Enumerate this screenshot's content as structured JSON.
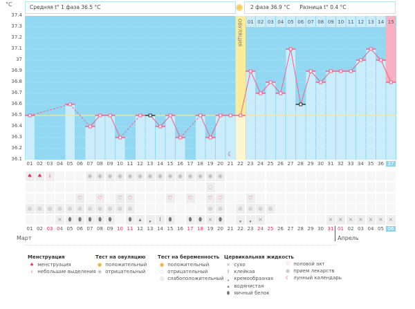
{
  "unit": "°C",
  "phase1_label": "Средняя t° 1 фаза 36.5 °C",
  "phase2_label": "2 фаза 36.9 °C",
  "diff_label": "Разница t° 0.4 °C",
  "ovulation_label": "ОВУЛЯЦИЯ",
  "colors": {
    "chart_bg": "#92d8f2",
    "bar": "#cbedfb",
    "line": "#f0608a",
    "ovulation": "#fbec9c",
    "pink": "#f9b0c0",
    "today": "#8fd4ee"
  },
  "chart_data": {
    "type": "line",
    "ylabel": "°C",
    "ylim": [
      36.1,
      37.4
    ],
    "yticks": [
      "37.4",
      "37.3",
      "37.2",
      "37.1",
      "37",
      "36.9",
      "36.8",
      "36.7",
      "36.6",
      "36.5",
      "36.4",
      "36.3",
      "36.2",
      "36.1"
    ],
    "days": [
      "01",
      "02",
      "03",
      "04",
      "05",
      "06",
      "07",
      "08",
      "09",
      "10",
      "11",
      "12",
      "13",
      "14",
      "15",
      "16",
      "17",
      "18",
      "19",
      "20",
      "21",
      "22",
      "23",
      "24",
      "25",
      "26",
      "27",
      "28",
      "29",
      "30",
      "31",
      "32",
      "33",
      "34",
      "35",
      "36",
      "37"
    ],
    "temps": [
      36.5,
      null,
      null,
      null,
      36.6,
      null,
      36.4,
      36.5,
      36.5,
      36.3,
      null,
      36.5,
      36.5,
      36.4,
      36.5,
      36.3,
      null,
      36.5,
      36.3,
      36.5,
      36.5,
      36.5,
      36.9,
      36.7,
      36.8,
      36.7,
      37.1,
      36.6,
      36.9,
      36.8,
      36.9,
      36.9,
      36.9,
      37.0,
      37.1,
      37.0,
      36.8
    ],
    "coverline": 36.5,
    "ovulation_day": 22
  },
  "phase2_days": [
    "01",
    "02",
    "03",
    "04",
    "05",
    "06",
    "07",
    "08",
    "09",
    "10",
    "11",
    "12",
    "13",
    "14",
    "15"
  ],
  "dates": [
    "01",
    "02",
    "03",
    "04",
    "05",
    "06",
    "07",
    "08",
    "09",
    "10",
    "11",
    "12",
    "13",
    "14",
    "15",
    "16",
    "17",
    "18",
    "19",
    "20",
    "21",
    "22",
    "23",
    "24",
    "25",
    "26",
    "27",
    "28",
    "29",
    "30",
    "31",
    "01",
    "02",
    "03",
    "04",
    "05",
    "06"
  ],
  "weekend_dates": [
    3,
    4,
    10,
    11,
    17,
    18,
    24,
    25,
    31,
    32
  ],
  "months": [
    "Март",
    "Апрель"
  ],
  "rows": {
    "menstruation": {
      "1": "heavy",
      "2": "heavy",
      "3": "light"
    },
    "ovulation_test": {
      "7": "neg",
      "8": "neg",
      "9": "neg",
      "10": "neg",
      "11": "neg",
      "12": "neg",
      "13": "neg",
      "14": "neg",
      "15": "neg",
      "16": "neg",
      "17": "neg",
      "18": "neg",
      "19": "neg",
      "20": "neg"
    },
    "pregnancy_test": {
      "19": "neg"
    },
    "sex": [
      6,
      8,
      10,
      11,
      15,
      17,
      19,
      20,
      23
    ],
    "pills": [
      1,
      2,
      3,
      4,
      5,
      6,
      7,
      8,
      9,
      10,
      11,
      19,
      20,
      22,
      23,
      24,
      25
    ],
    "cervical": {
      "4": "dry",
      "5": "egg",
      "6": "egg",
      "7": "egg",
      "8": "egg",
      "9": "egg",
      "11": "egg",
      "12": "water",
      "13": "cream",
      "14": "sticky",
      "15": "egg",
      "17": "egg",
      "18": "egg",
      "19": "dry",
      "20": "egg",
      "22": "cream",
      "23": "cream",
      "24": "dry",
      "31": "dry",
      "32": "dry",
      "33": "dry",
      "34": "dry",
      "35": "dry",
      "36": "dry",
      "37": "dry"
    }
  },
  "legend": {
    "menstruation": {
      "title": "Менструация",
      "items": [
        "менструация",
        "небольшие выделения"
      ]
    },
    "ovulation_test": {
      "title": "Тест на овуляцию",
      "items": [
        "положительный",
        "отрицательный"
      ]
    },
    "pregnancy_test": {
      "title": "Тест на беременность",
      "items": [
        "положительный",
        "отрицательный",
        "слабоположительный"
      ]
    },
    "cervical": {
      "title": "Цервикальная жидкость",
      "items": [
        "сухо",
        "клейкая",
        "кремообразная",
        "водянистая",
        "яичный белок"
      ]
    },
    "other": {
      "items": [
        "половой акт",
        "прием лекарств",
        "лунный календарь"
      ]
    }
  }
}
